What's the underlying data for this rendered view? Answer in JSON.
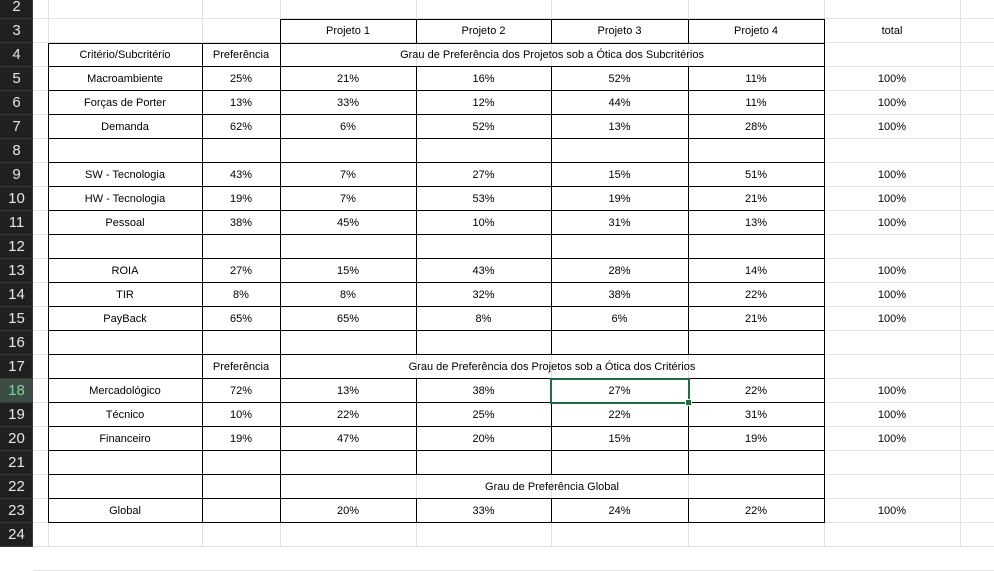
{
  "row_numbers": [
    "2",
    "3",
    "4",
    "5",
    "6",
    "7",
    "8",
    "9",
    "10",
    "11",
    "12",
    "13",
    "14",
    "15",
    "16",
    "17",
    "18",
    "19",
    "20",
    "21",
    "22",
    "23",
    "24"
  ],
  "selected_row": "18",
  "headers": {
    "projects": [
      "Projeto 1",
      "Projeto 2",
      "Projeto 3",
      "Projeto 4"
    ],
    "total": "total",
    "criterio_subcriterio": "Critério/Subcritério",
    "preferencia": "Preferência",
    "title_subcriterios": "Grau de Preferência dos Projetos sob a Ótica dos Subcritérios",
    "preferencia_2": "Preferência",
    "title_criterios": "Grau de Preferência dos Projetos sob a Ótica dos Critérios",
    "title_global": "Grau de Preferência Global"
  },
  "subcriteria_groups": [
    [
      {
        "name": "Macroambiente",
        "pref": "25%",
        "p": [
          "21%",
          "16%",
          "52%",
          "11%"
        ],
        "total": "100%"
      },
      {
        "name": "Forças de Porter",
        "pref": "13%",
        "p": [
          "33%",
          "12%",
          "44%",
          "11%"
        ],
        "total": "100%"
      },
      {
        "name": "Demanda",
        "pref": "62%",
        "p": [
          "6%",
          "52%",
          "13%",
          "28%"
        ],
        "total": "100%"
      }
    ],
    [
      {
        "name": "SW - Tecnologia",
        "pref": "43%",
        "p": [
          "7%",
          "27%",
          "15%",
          "51%"
        ],
        "total": "100%"
      },
      {
        "name": "HW - Tecnologia",
        "pref": "19%",
        "p": [
          "7%",
          "53%",
          "19%",
          "21%"
        ],
        "total": "100%"
      },
      {
        "name": "Pessoal",
        "pref": "38%",
        "p": [
          "45%",
          "10%",
          "31%",
          "13%"
        ],
        "total": "100%"
      }
    ],
    [
      {
        "name": "ROIA",
        "pref": "27%",
        "p": [
          "15%",
          "43%",
          "28%",
          "14%"
        ],
        "total": "100%"
      },
      {
        "name": "TIR",
        "pref": "8%",
        "p": [
          "8%",
          "32%",
          "38%",
          "22%"
        ],
        "total": "100%"
      },
      {
        "name": "PayBack",
        "pref": "65%",
        "p": [
          "65%",
          "8%",
          "6%",
          "21%"
        ],
        "total": "100%"
      }
    ]
  ],
  "criteria": [
    {
      "name": "Mercadológico",
      "pref": "72%",
      "p": [
        "13%",
        "38%",
        "27%",
        "22%"
      ],
      "total": "100%"
    },
    {
      "name": "Técnico",
      "pref": "10%",
      "p": [
        "22%",
        "25%",
        "22%",
        "31%"
      ],
      "total": "100%"
    },
    {
      "name": "Financeiro",
      "pref": "19%",
      "p": [
        "47%",
        "20%",
        "15%",
        "19%"
      ],
      "total": "100%"
    }
  ],
  "global": {
    "name": "Global",
    "p": [
      "20%",
      "33%",
      "24%",
      "22%"
    ],
    "total": "100%"
  }
}
